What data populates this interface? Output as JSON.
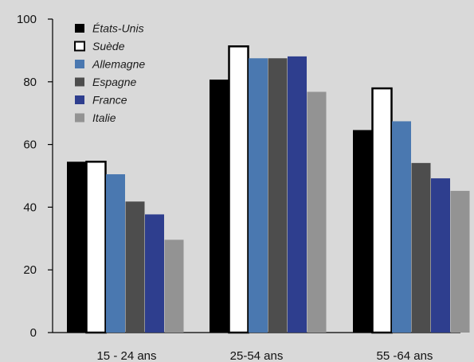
{
  "chart_data": {
    "type": "bar",
    "categories": [
      "15 - 24 ans",
      "25-54 ans",
      "55 -64 ans"
    ],
    "series": [
      {
        "name": "États-Unis",
        "color": "#000000",
        "values": [
          54.5,
          80.7,
          64.6
        ]
      },
      {
        "name": "Suède",
        "color": "#ffffff",
        "values": [
          54.5,
          91.3,
          77.9
        ]
      },
      {
        "name": "Allemagne",
        "color": "#4a78b0",
        "values": [
          50.5,
          87.5,
          67.4
        ]
      },
      {
        "name": "Espagne",
        "color": "#4d4d4d",
        "values": [
          41.8,
          87.5,
          54.1
        ]
      },
      {
        "name": "France",
        "color": "#2e3e8e",
        "values": [
          37.7,
          88.1,
          49.2
        ]
      },
      {
        "name": "Italie",
        "color": "#939393",
        "values": [
          29.6,
          76.8,
          45.2
        ]
      }
    ],
    "y_ticks": [
      "0",
      "20",
      "40",
      "60",
      "80",
      "100"
    ],
    "ylim": [
      0,
      100
    ],
    "legend_position": "top-left",
    "grid": false
  }
}
